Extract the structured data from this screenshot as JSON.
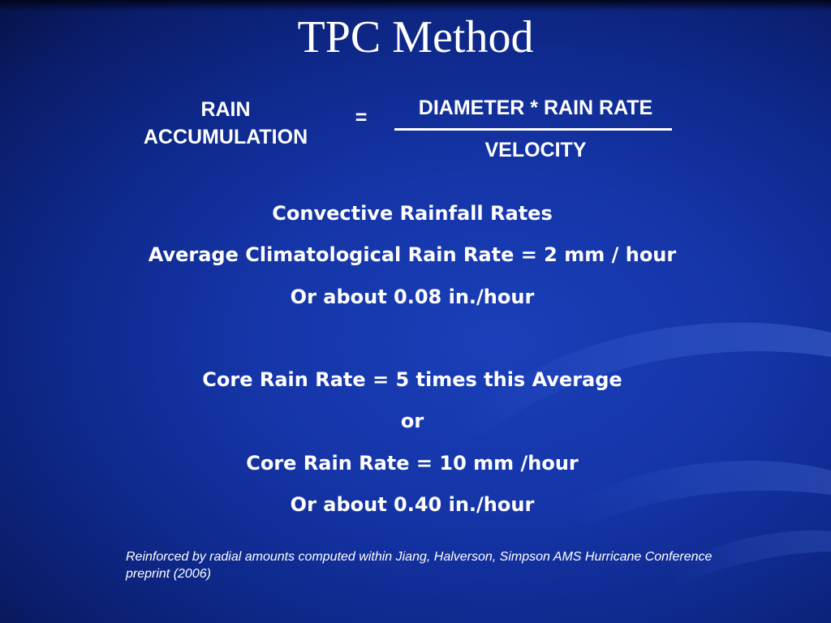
{
  "title": "TPC Method",
  "equation": {
    "left_line1": "RAIN",
    "left_line2": "ACCUMULATION",
    "sign": "=",
    "numerator": "DIAMETER * RAIN RATE",
    "denominator": "VELOCITY"
  },
  "lines": [
    "Convective Rainfall Rates",
    "Average Climatological Rain Rate = 2 mm / hour",
    "Or about 0.08 in./hour",
    "",
    "Core Rain Rate = 5 times this Average",
    "or",
    "Core Rain Rate = 10 mm /hour",
    "Or about 0.40 in./hour"
  ],
  "note": "Reinforced by radial amounts computed within Jiang, Halverson, Simpson AMS Hurricane Conference preprint (2006)"
}
